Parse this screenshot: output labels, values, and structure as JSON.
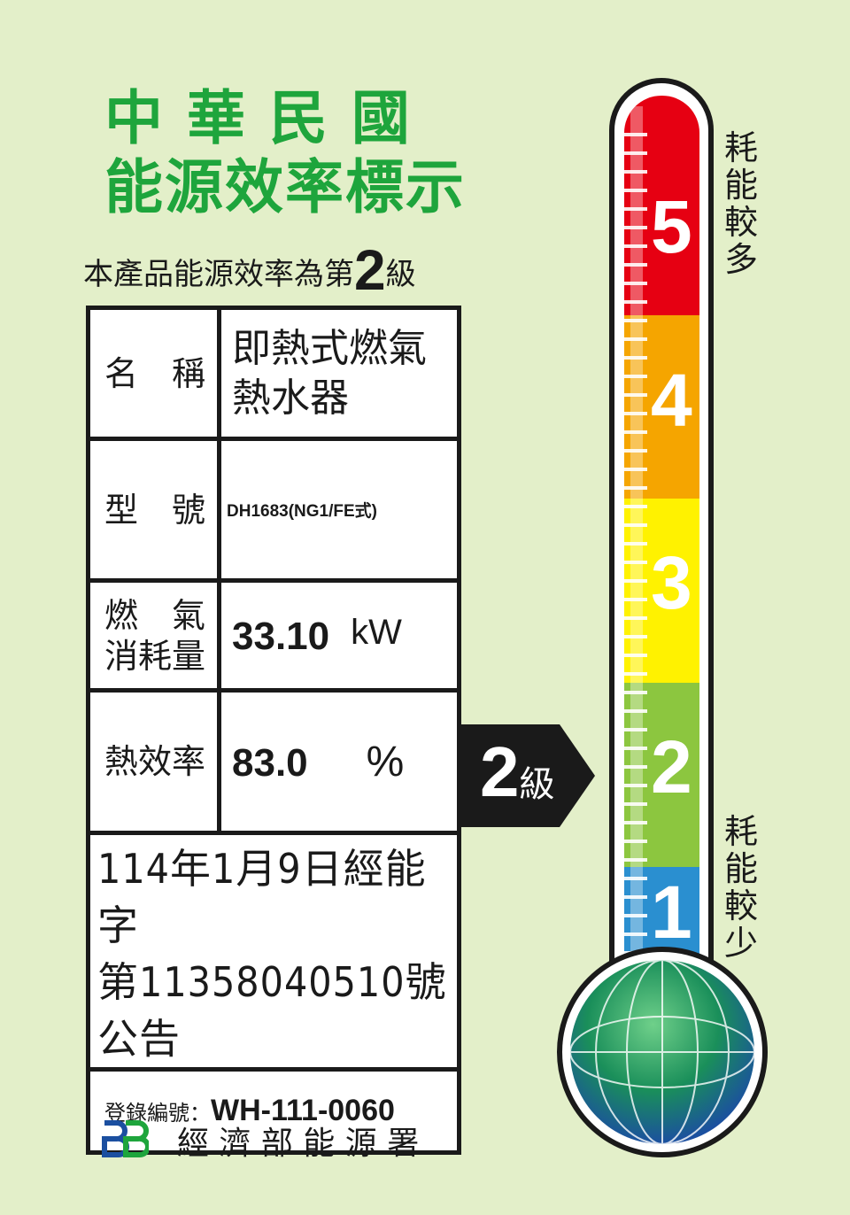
{
  "header": {
    "line1": "中 華 民 國",
    "line2": "能源效率標示"
  },
  "grade_statement": {
    "prefix": "本產品能源效率為第",
    "grade": "2",
    "suffix": "級"
  },
  "table": {
    "name_label": "名　稱",
    "name_value": "即熱式燃氣\n熱水器",
    "model_label": "型　號",
    "model_value": "DH1683(NG1/FE式)",
    "gas_label": "燃　氣\n消耗量",
    "gas_value": "33.10",
    "gas_unit": "kW",
    "efficiency_label": "熱效率",
    "efficiency_value": "83.0",
    "efficiency_unit": "%",
    "notice": "114年1月9日經能字\n第11358040510號公告",
    "registration_label": "登錄編號：",
    "registration_value": "WH-111-0060"
  },
  "pointer": {
    "grade": "2",
    "suffix": "級"
  },
  "scale": {
    "levels": [
      "5",
      "4",
      "3",
      "2",
      "1"
    ],
    "colors": [
      "#e60012",
      "#f5a500",
      "#fff200",
      "#8cc63f",
      "#2a8fd0"
    ],
    "top_label": "耗能較多",
    "bottom_label": "耗能較少",
    "current_level": 2
  },
  "footer": {
    "agency": "經 濟 部 能 源 署",
    "logo": "BB"
  },
  "colors": {
    "background": "#e3efc9",
    "title": "#1ea53c"
  }
}
